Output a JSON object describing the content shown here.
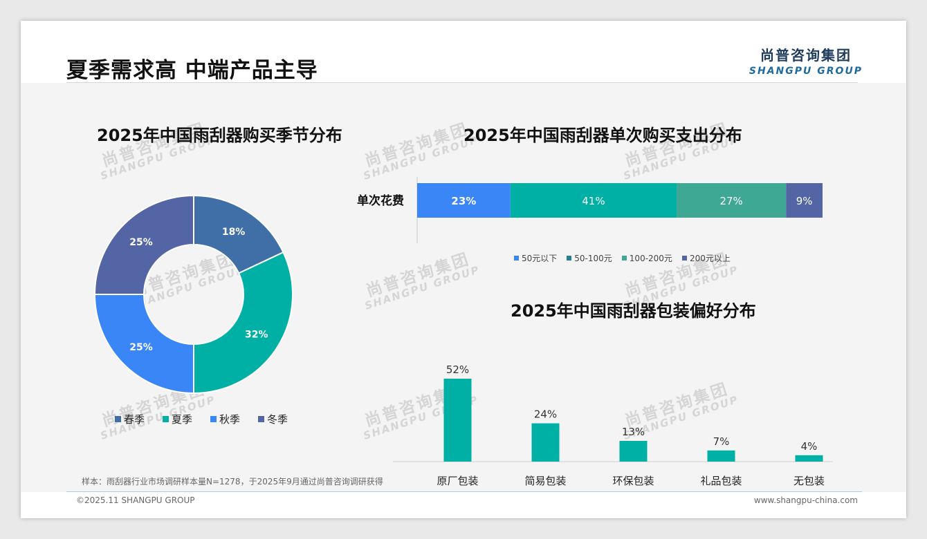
{
  "header": {
    "title": "夏季需求高 中端产品主导",
    "logo_cn": "尚普咨询集团",
    "logo_en": "SHANGPU GROUP"
  },
  "watermark": {
    "cn": "尚普咨询集团",
    "en": "SHANGPU GROUP"
  },
  "colors": {
    "spring": "#3f6fa6",
    "summer": "#00b0a4",
    "autumn": "#3a86f7",
    "winter": "#5365a4",
    "band_100_200": "#3ea895"
  },
  "chart_data": [
    {
      "type": "pie",
      "title": "2025年中国雨刮器购买季节分布",
      "donut": true,
      "legend_position": "bottom",
      "categories": [
        "春季",
        "夏季",
        "秋季",
        "冬季"
      ],
      "values": [
        18,
        32,
        25,
        25
      ],
      "labels": [
        "18%",
        "32%",
        "25%",
        "25%"
      ],
      "colors": [
        "#3f6fa6",
        "#00b0a4",
        "#3a86f7",
        "#5365a4"
      ]
    },
    {
      "type": "bar",
      "orientation": "horizontal",
      "stacked": true,
      "title": "2025年中国雨刮器单次购买支出分布",
      "categories": [
        "单次花费"
      ],
      "legend_position": "bottom",
      "series": [
        {
          "name": "50元以下",
          "values": [
            23
          ],
          "label": "23%",
          "color": "#3a86f7"
        },
        {
          "name": "50-100元",
          "values": [
            41
          ],
          "label": "41%",
          "color": "#00b0a4"
        },
        {
          "name": "100-200元",
          "values": [
            27
          ],
          "label": "27%",
          "color": "#3ea895"
        },
        {
          "name": "200元以上",
          "values": [
            9
          ],
          "label": "9%",
          "color": "#5365a4"
        }
      ],
      "legend_colors": [
        "#3a86f7",
        "#277e8f",
        "#3ea895",
        "#5365a4"
      ]
    },
    {
      "type": "bar",
      "title": "2025年中国雨刮器包装偏好分布",
      "categories": [
        "原厂包装",
        "简易包装",
        "环保包装",
        "礼品包装",
        "无包装"
      ],
      "values": [
        52,
        24,
        13,
        7,
        4
      ],
      "labels": [
        "52%",
        "24%",
        "13%",
        "7%",
        "4%"
      ],
      "color": "#00b0a4",
      "grid": false
    }
  ],
  "footer": {
    "note": "样本：雨刮器行业市场调研样本量N=1278，于2025年9月通过尚普咨询调研获得",
    "copyright": "©2025.11 SHANGPU GROUP",
    "website": "www.shangpu-china.com"
  }
}
